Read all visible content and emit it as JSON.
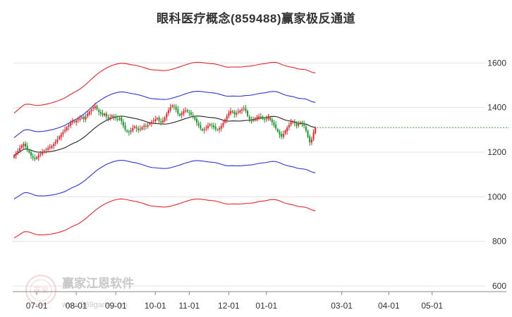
{
  "chart_data": {
    "type": "candlestick",
    "title": "眼科医疗概念(859488)赢家极反通道",
    "y_ticks": [
      600,
      800,
      1000,
      1200,
      1400,
      1600
    ],
    "ylim": [
      600,
      1680
    ],
    "x_ticks": [
      "07-01",
      "08-01",
      "09-01",
      "10-01",
      "11-01",
      "12-01",
      "01-01",
      "03-01",
      "04-01",
      "05-01"
    ],
    "x_tick_index": [
      12,
      33,
      54,
      75,
      93,
      114,
      134,
      174,
      199,
      222
    ],
    "last_close": 1310,
    "price": [
      1185,
      1196,
      1206,
      1218,
      1230,
      1238,
      1225,
      1210,
      1198,
      1185,
      1174,
      1168,
      1178,
      1188,
      1194,
      1200,
      1206,
      1212,
      1218,
      1222,
      1228,
      1236,
      1246,
      1258,
      1270,
      1280,
      1290,
      1300,
      1312,
      1322,
      1332,
      1338,
      1335,
      1342,
      1348,
      1352,
      1356,
      1348,
      1360,
      1372,
      1382,
      1392,
      1400,
      1406,
      1392,
      1380,
      1372,
      1366,
      1372,
      1360,
      1350,
      1356,
      1364,
      1358,
      1352,
      1346,
      1352,
      1338,
      1318,
      1300,
      1292,
      1288,
      1298,
      1308,
      1315,
      1306,
      1298,
      1304,
      1312,
      1320,
      1314,
      1322,
      1330,
      1336,
      1342,
      1348,
      1352,
      1340,
      1332,
      1342,
      1356,
      1372,
      1388,
      1402,
      1410,
      1404,
      1390,
      1372,
      1364,
      1376,
      1384,
      1386,
      1382,
      1376,
      1368,
      1358,
      1346,
      1332,
      1320,
      1306,
      1298,
      1304,
      1310,
      1318,
      1326,
      1320,
      1312,
      1302,
      1300,
      1308,
      1318,
      1330,
      1346,
      1362,
      1376,
      1384,
      1378,
      1370,
      1376,
      1382,
      1386,
      1392,
      1398,
      1384,
      1362,
      1348,
      1340,
      1344,
      1352,
      1358,
      1360,
      1356,
      1350,
      1346,
      1352,
      1356,
      1344,
      1334,
      1322,
      1306,
      1292,
      1278,
      1270,
      1282,
      1296,
      1310,
      1322,
      1334,
      1338,
      1330,
      1318,
      1326,
      1334,
      1328,
      1318,
      1296,
      1268,
      1244,
      1258,
      1288,
      1310
    ]
  }
}
